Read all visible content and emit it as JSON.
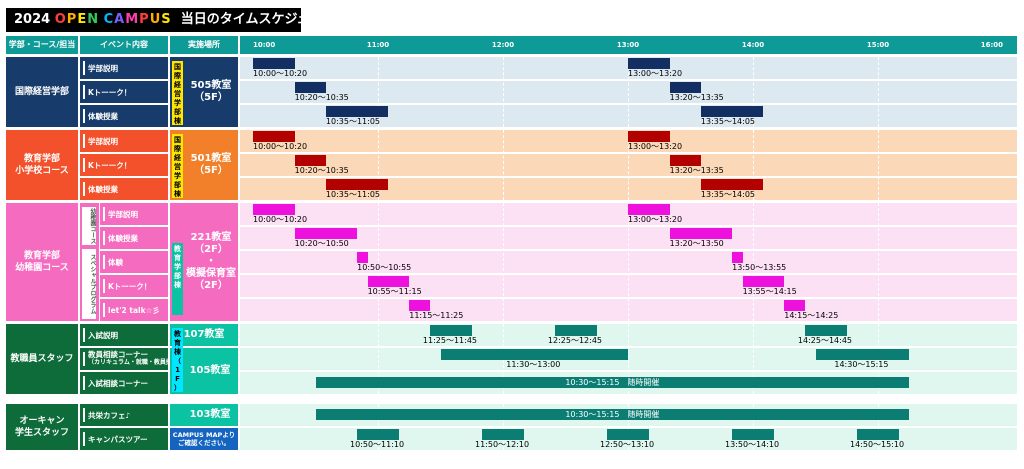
{
  "title": {
    "prefix": "2024 ",
    "open": "OPEN",
    "campus": "CAMPUS",
    "suffix": "当日のタイムスケジュール",
    "colors": [
      "#ff3d3d",
      "#ffae00",
      "#ffe600",
      "#34c759",
      "#00b7ff",
      "#7b5cff",
      "#ff3da8"
    ]
  },
  "headers": {
    "dept": "学部・コース/担当",
    "event": "イベント内容",
    "place": "実施場所"
  },
  "times": [
    "10:00",
    "11:00",
    "12:00",
    "13:00",
    "14:00",
    "15:00",
    "16:00"
  ],
  "sections": [
    {
      "name": "国際経営学部",
      "color": "#173b6b",
      "light": "#dde9f1",
      "barColor": "#132e62",
      "events": [
        "学部説明",
        "Kトーーク！",
        "体験授業"
      ],
      "building": "国\n際\n経\n営\n学\n部\n棟",
      "place": "505教室\n（5F）",
      "bars": [
        [
          "10:00",
          "10:20",
          "10:00～10:20"
        ],
        [
          "13:00",
          "13:20",
          "13:00～13:20"
        ],
        [
          "10:20",
          "10:35",
          "10:20～10:35"
        ],
        [
          "13:20",
          "13:35",
          "13:20～13:35"
        ],
        [
          "10:35",
          "11:05",
          "10:35～11:05"
        ],
        [
          "13:35",
          "14:05",
          "13:35～14:05"
        ]
      ]
    },
    {
      "name": "教育学部\n小学校コース",
      "color": "#f2512b",
      "light": "#fbd9b8",
      "barColor": "#b30000",
      "events": [
        "学部説明",
        "Kトーーク！",
        "体験授業"
      ],
      "building": "国\n際\n経\n営\n学\n部\n棟",
      "place": "501教室\n（5F）",
      "bars": [
        [
          "10:00",
          "10:20",
          "10:00～10:20"
        ],
        [
          "13:00",
          "13:20",
          "13:00～13:20"
        ],
        [
          "10:20",
          "10:35",
          "10:20～10:35"
        ],
        [
          "13:20",
          "13:35",
          "13:20～13:35"
        ],
        [
          "10:35",
          "11:05",
          "10:35～11:05"
        ],
        [
          "13:35",
          "14:05",
          "13:35～14:05"
        ]
      ]
    },
    {
      "name": "教育学部\n幼稚園コース",
      "color": "#f56bc0",
      "light": "#fce0f4",
      "barColor": "#ee11dd",
      "subLabel": "幼稚園コース",
      "subLabel2": "スペシャルプログラム",
      "events": [
        "学部説明",
        "体験授業",
        "体験",
        "Kトーーク！",
        "let'2 talk☆彡"
      ],
      "building": "教\n育\n学\n部\n棟",
      "place": "221教室\n（2F）\n・\n模擬保育室\n（2F）",
      "bars": [
        [
          "10:00",
          "10:20",
          "10:00～10:20"
        ],
        [
          "13:00",
          "13:20",
          "13:00～13:20"
        ],
        [
          "10:20",
          "10:50",
          "10:20～10:50"
        ],
        [
          "13:20",
          "13:50",
          "13:20～13:50"
        ],
        [
          "10:50",
          "10:55",
          "10:50～10:55"
        ],
        [
          "13:50",
          "13:55",
          "13:50～13:55"
        ],
        [
          "10:55",
          "11:15",
          "10:55～11:15"
        ],
        [
          "13:55",
          "14:15",
          "13:55～14:15"
        ],
        [
          "11:15",
          "11:25",
          "11:15～11:25"
        ],
        [
          "14:15",
          "14:25",
          "14:15～14:25"
        ]
      ]
    },
    {
      "name": "教職員スタッフ",
      "color": "#0e6b3a",
      "light": "#dff7ef",
      "barColor": "#0b7d73",
      "events": [
        "入試説明",
        "教員相談コーナー",
        "入試相談コーナー"
      ],
      "eventSub": "（カリキュラム・就職・教員採用対策）",
      "building": "教\n育\n棟\n（\n1\nF\n）",
      "place1": "107教室",
      "place2": "105教室",
      "bars": [
        [
          "11:25",
          "11:45",
          "11:25～11:45"
        ],
        [
          "12:25",
          "12:45",
          "12:25～12:45"
        ],
        [
          "14:25",
          "14:45",
          "14:25～14:45"
        ],
        [
          "11:30",
          "13:00",
          "11:30～13:00"
        ],
        [
          "14:30",
          "15:15",
          "14:30～15:15"
        ]
      ],
      "long": "10:30～15:15　随時開催"
    },
    {
      "name": "オーキャン\n学生スタッフ",
      "color": "#0e6b3a",
      "light": "#dff7ef",
      "barColor": "#0b7d73",
      "events": [
        "共栄カフェ♪",
        "キャンパスツアー"
      ],
      "place1": "103教室",
      "place2": "CAMPUS MAPより\nご確認ください。",
      "long": "10:30～15:15　随時開催",
      "bars": [
        [
          "10:50",
          "11:10",
          "10:50～11:10"
        ],
        [
          "11:50",
          "12:10",
          "11:50～12:10"
        ],
        [
          "12:50",
          "13:10",
          "12:50～13:10"
        ],
        [
          "13:50",
          "14:10",
          "13:50～14:10"
        ],
        [
          "14:50",
          "15:10",
          "14:50～15:10"
        ]
      ]
    }
  ]
}
